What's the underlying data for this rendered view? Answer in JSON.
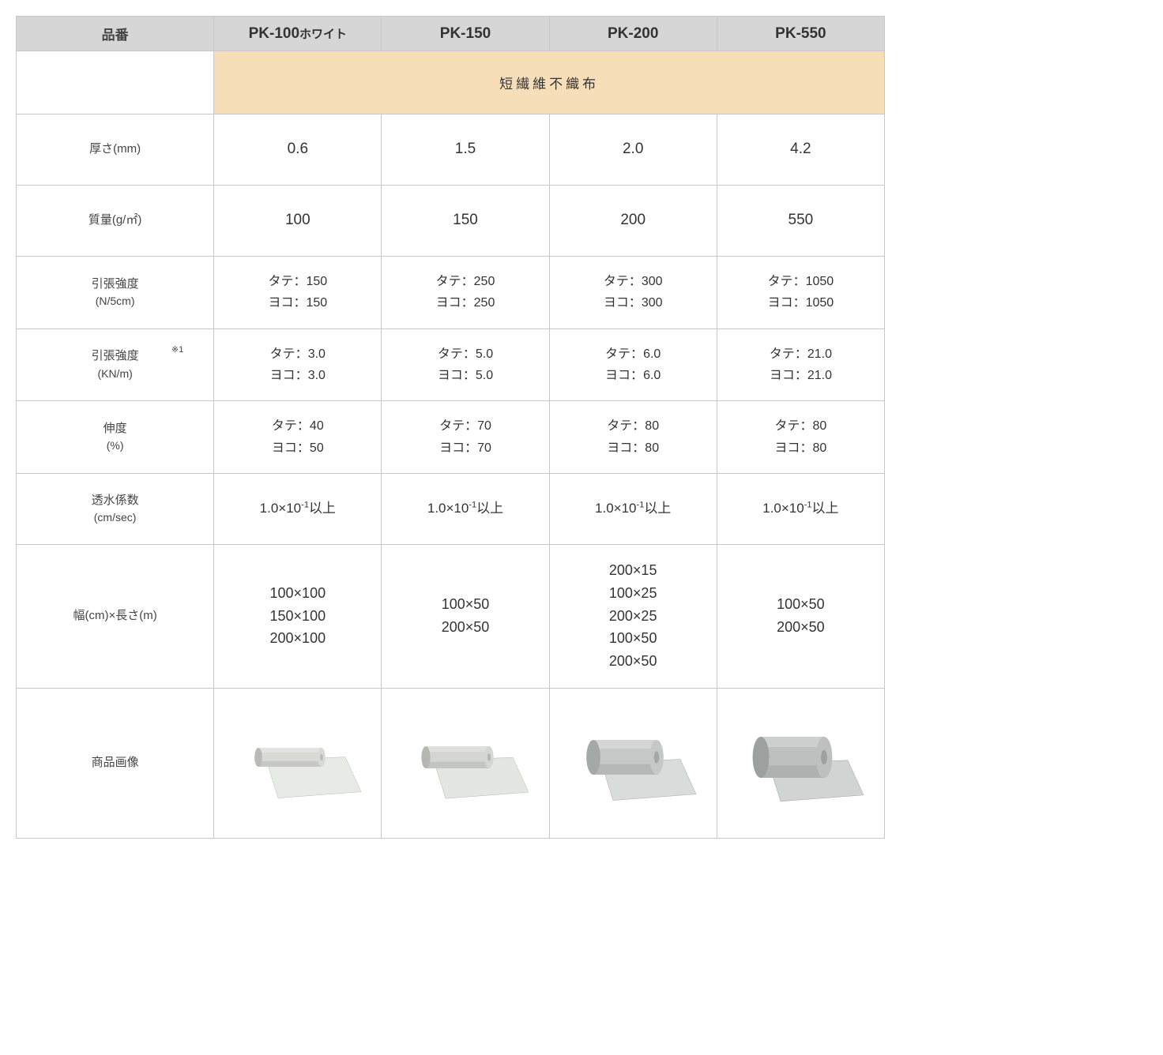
{
  "table": {
    "header_label": "品番",
    "products": [
      {
        "name": "PK-100",
        "suffix": "ホワイト"
      },
      {
        "name": "PK-150",
        "suffix": ""
      },
      {
        "name": "PK-200",
        "suffix": ""
      },
      {
        "name": "PK-550",
        "suffix": ""
      }
    ],
    "category": "短繊維不織布",
    "rows": {
      "thickness": {
        "label": "厚さ(mm)",
        "values": [
          "0.6",
          "1.5",
          "2.0",
          "4.2"
        ]
      },
      "mass": {
        "label": "質量(g/㎡)",
        "values": [
          "100",
          "150",
          "200",
          "550"
        ]
      },
      "tensile_n": {
        "label": "引張強度",
        "unit": "(N/5cm)",
        "values": [
          {
            "tate": "150",
            "yoko": "150"
          },
          {
            "tate": "250",
            "yoko": "250"
          },
          {
            "tate": "300",
            "yoko": "300"
          },
          {
            "tate": "1050",
            "yoko": "1050"
          }
        ]
      },
      "tensile_kn": {
        "label": "引張強度",
        "unit": "(KN/m)",
        "note": "※1",
        "values": [
          {
            "tate": "3.0",
            "yoko": "3.0"
          },
          {
            "tate": "5.0",
            "yoko": "5.0"
          },
          {
            "tate": "6.0",
            "yoko": "6.0"
          },
          {
            "tate": "21.0",
            "yoko": "21.0"
          }
        ]
      },
      "elongation": {
        "label": "伸度",
        "unit": "(%)",
        "values": [
          {
            "tate": "40",
            "yoko": "50"
          },
          {
            "tate": "70",
            "yoko": "70"
          },
          {
            "tate": "80",
            "yoko": "80"
          },
          {
            "tate": "80",
            "yoko": "80"
          }
        ]
      },
      "permeability": {
        "label": "透水係数",
        "unit": "(cm/sec)",
        "value_base": "1.0×10",
        "value_exp": "-1",
        "value_suffix": "以上"
      },
      "dimensions": {
        "label": "幅(cm)×長さ(m)",
        "values": [
          [
            "100×100",
            "150×100",
            "200×100"
          ],
          [
            "100×50",
            "200×50"
          ],
          [
            "200×15",
            "100×25",
            "200×25",
            "100×50",
            "200×50"
          ],
          [
            "100×50",
            "200×50"
          ]
        ]
      },
      "image": {
        "label": "商品画像",
        "roll_colors": [
          {
            "roll": "#d8dad6",
            "shadow": "#b8bab6",
            "sheet": "#e8eae6"
          },
          {
            "roll": "#d4d6d2",
            "shadow": "#b4b6b2",
            "sheet": "#e4e6e2"
          },
          {
            "roll": "#c4c8c6",
            "shadow": "#a4a8a6",
            "sheet": "#d8dcda"
          },
          {
            "roll": "#bcc0be",
            "shadow": "#9ca09e",
            "sheet": "#d0d4d2"
          }
        ]
      }
    },
    "labels": {
      "tate": "タテ：",
      "yoko": "ヨコ："
    },
    "colors": {
      "border": "#c8c8c8",
      "header_bg": "#d6d6d6",
      "category_bg": "#f6deb8",
      "cell_bg": "#ffffff",
      "text": "#333333"
    }
  }
}
